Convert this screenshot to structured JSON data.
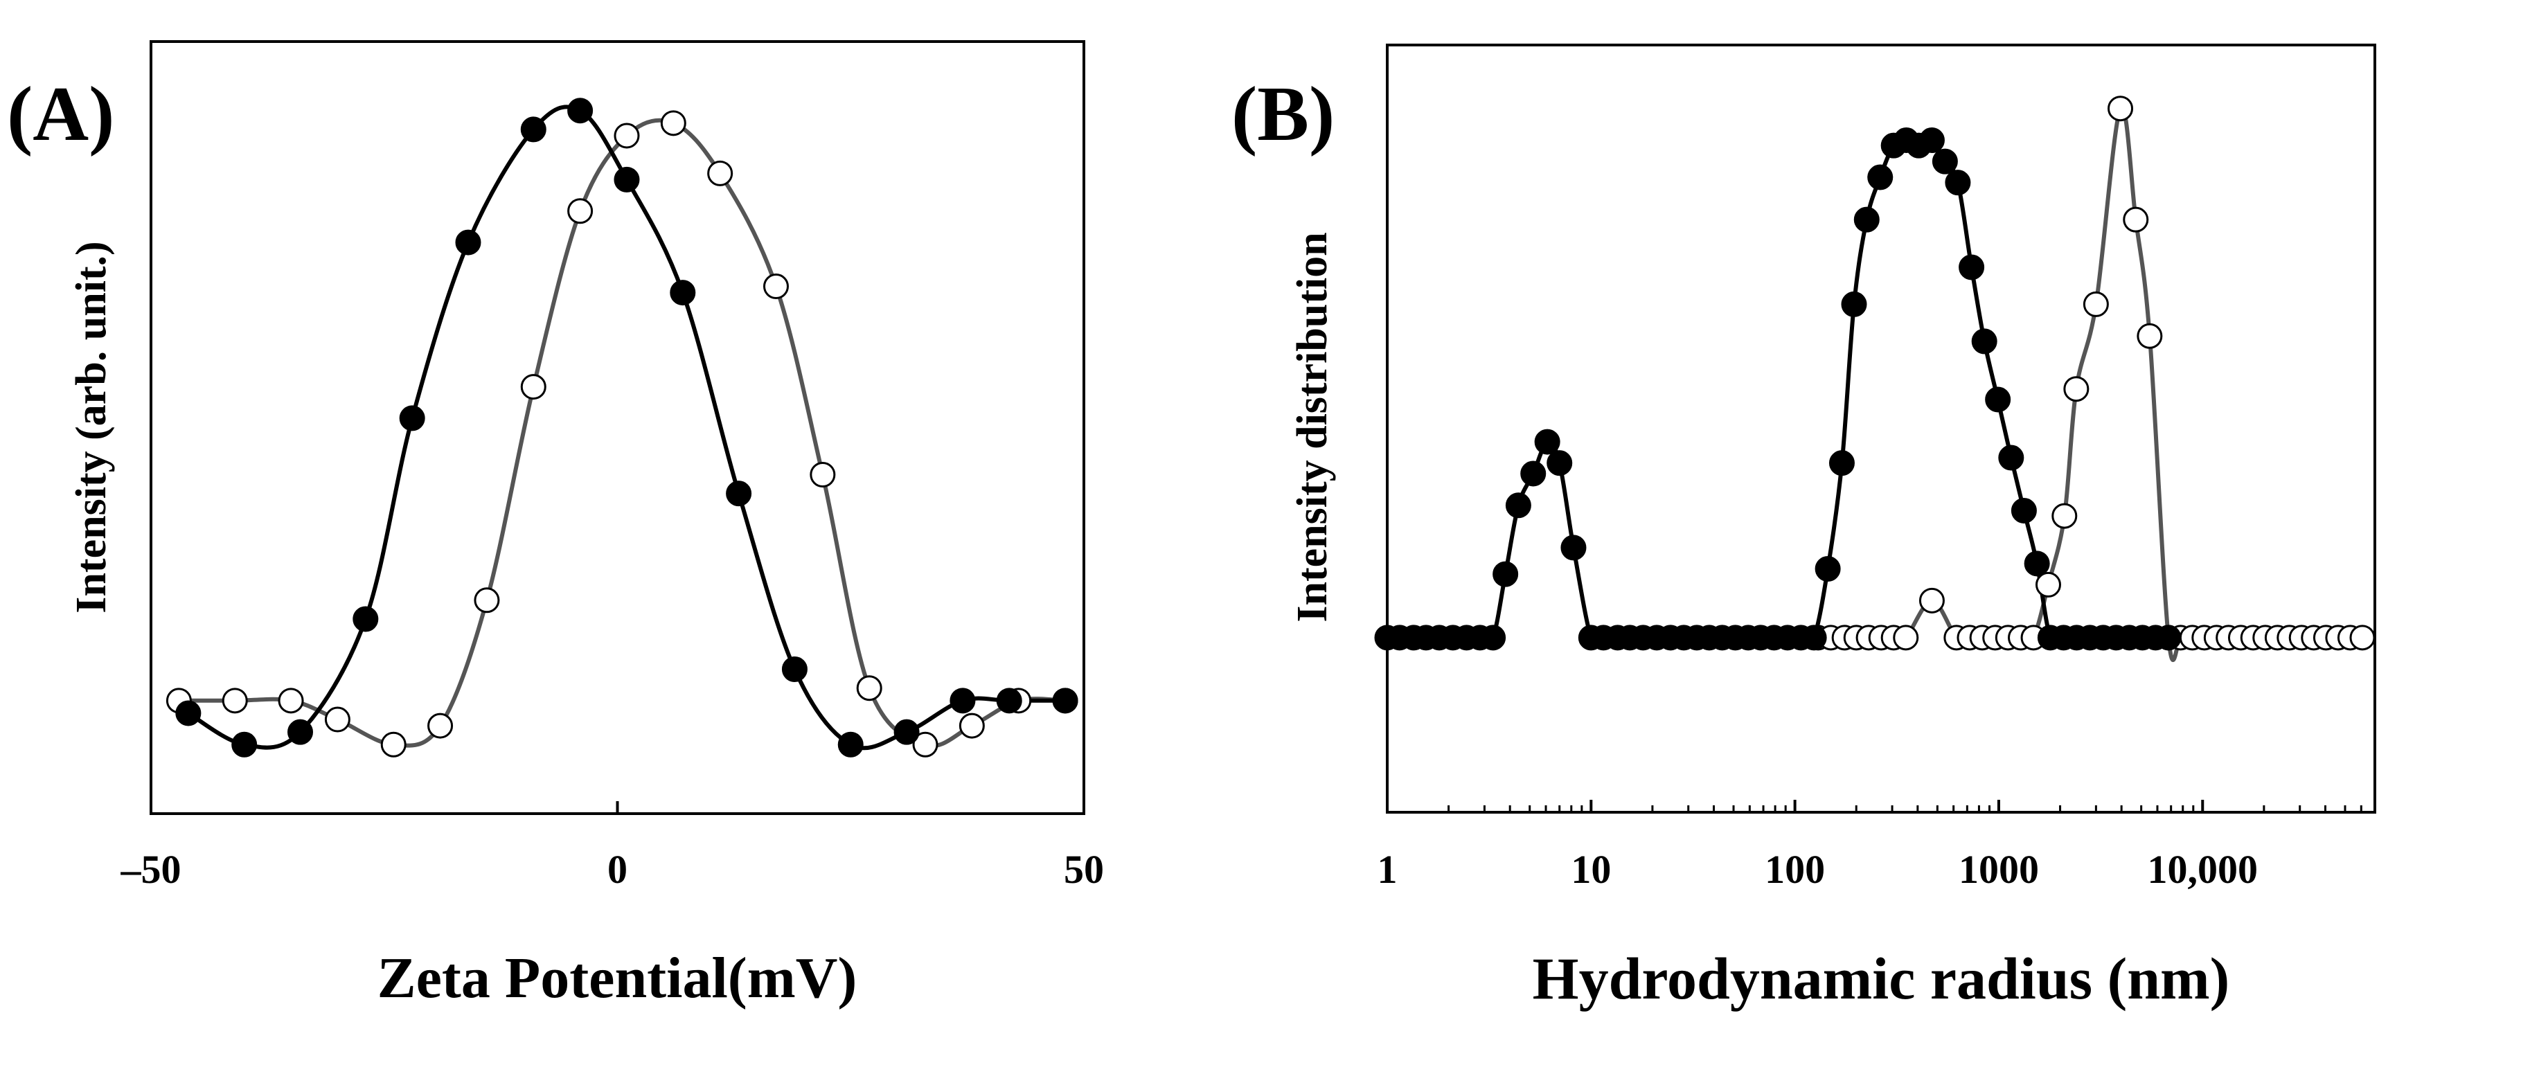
{
  "chart_data": [
    {
      "type": "scatter",
      "panel_label": "(A)",
      "title": "",
      "xlabel": "Zeta Potential(mV)",
      "ylabel": "Intensity (arb. unit.)",
      "xlim": [
        -50,
        50
      ],
      "ylim": [
        -0.18,
        1.05
      ],
      "x_ticks": [
        -50,
        0,
        50
      ],
      "x_tick_labels": [
        "–50",
        "0",
        "50"
      ],
      "grid": false,
      "series": [
        {
          "name": "filled",
          "marker": "filled",
          "line_color": "#000000",
          "points": [
            {
              "x": -46,
              "y": -0.02
            },
            {
              "x": -40,
              "y": -0.07
            },
            {
              "x": -34,
              "y": -0.05
            },
            {
              "x": -27,
              "y": 0.13
            },
            {
              "x": -22,
              "y": 0.45
            },
            {
              "x": -16,
              "y": 0.73
            },
            {
              "x": -9,
              "y": 0.91
            },
            {
              "x": -4,
              "y": 0.94
            },
            {
              "x": 1,
              "y": 0.83
            },
            {
              "x": 7,
              "y": 0.65
            },
            {
              "x": 13,
              "y": 0.33
            },
            {
              "x": 19,
              "y": 0.05
            },
            {
              "x": 25,
              "y": -0.07
            },
            {
              "x": 31,
              "y": -0.05
            },
            {
              "x": 37,
              "y": 0.0
            },
            {
              "x": 42,
              "y": 0.0
            },
            {
              "x": 48,
              "y": 0.0
            }
          ]
        },
        {
          "name": "open",
          "marker": "open",
          "line_color": "#555555",
          "points": [
            {
              "x": -47,
              "y": 0.0
            },
            {
              "x": -41,
              "y": 0.0
            },
            {
              "x": -35,
              "y": 0.0
            },
            {
              "x": -30,
              "y": -0.03
            },
            {
              "x": -24,
              "y": -0.07
            },
            {
              "x": -19,
              "y": -0.04
            },
            {
              "x": -14,
              "y": 0.16
            },
            {
              "x": -9,
              "y": 0.5
            },
            {
              "x": -4,
              "y": 0.78
            },
            {
              "x": 1,
              "y": 0.9
            },
            {
              "x": 6,
              "y": 0.92
            },
            {
              "x": 11,
              "y": 0.84
            },
            {
              "x": 17,
              "y": 0.66
            },
            {
              "x": 22,
              "y": 0.36
            },
            {
              "x": 27,
              "y": 0.02
            },
            {
              "x": 33,
              "y": -0.07
            },
            {
              "x": 38,
              "y": -0.04
            },
            {
              "x": 43,
              "y": 0.0
            },
            {
              "x": 48,
              "y": 0.0
            }
          ]
        }
      ]
    },
    {
      "type": "scatter",
      "panel_label": "(B)",
      "title": "",
      "xlabel": "Hydrodynamic radius (nm)",
      "ylabel": "Intensity distribution",
      "xscale": "log",
      "xlim": [
        1,
        70000
      ],
      "ylim": [
        -0.33,
        1.12
      ],
      "x_ticks": [
        1,
        10,
        100,
        1000,
        10000
      ],
      "x_tick_labels": [
        "1",
        "10",
        "100",
        "1000",
        "10,000"
      ],
      "grid": false,
      "series": [
        {
          "name": "filled",
          "marker": "filled",
          "line_color": "#000000",
          "points": [
            {
              "x": 1.0,
              "y": 0.0
            },
            {
              "x": 1.15,
              "y": 0.0
            },
            {
              "x": 1.35,
              "y": 0.0
            },
            {
              "x": 1.55,
              "y": 0.0
            },
            {
              "x": 1.8,
              "y": 0.0
            },
            {
              "x": 2.1,
              "y": 0.0
            },
            {
              "x": 2.45,
              "y": 0.0
            },
            {
              "x": 2.85,
              "y": 0.0
            },
            {
              "x": 3.3,
              "y": 0.0
            },
            {
              "x": 3.8,
              "y": 0.12
            },
            {
              "x": 4.4,
              "y": 0.25
            },
            {
              "x": 5.2,
              "y": 0.31
            },
            {
              "x": 6.1,
              "y": 0.37
            },
            {
              "x": 7.0,
              "y": 0.33
            },
            {
              "x": 8.2,
              "y": 0.17
            },
            {
              "x": 10.0,
              "y": 0.0
            },
            {
              "x": 11.5,
              "y": 0.0
            },
            {
              "x": 13.5,
              "y": 0.0
            },
            {
              "x": 15.5,
              "y": 0.0
            },
            {
              "x": 18.0,
              "y": 0.0
            },
            {
              "x": 21.0,
              "y": 0.0
            },
            {
              "x": 24.5,
              "y": 0.0
            },
            {
              "x": 28.5,
              "y": 0.0
            },
            {
              "x": 33.0,
              "y": 0.0
            },
            {
              "x": 38.0,
              "y": 0.0
            },
            {
              "x": 44.0,
              "y": 0.0
            },
            {
              "x": 51.0,
              "y": 0.0
            },
            {
              "x": 59.0,
              "y": 0.0
            },
            {
              "x": 68.0,
              "y": 0.0
            },
            {
              "x": 79.0,
              "y": 0.0
            },
            {
              "x": 92.0,
              "y": 0.0
            },
            {
              "x": 107.0,
              "y": 0.0
            },
            {
              "x": 124.0,
              "y": 0.0
            },
            {
              "x": 145.0,
              "y": 0.13
            },
            {
              "x": 170.0,
              "y": 0.33
            },
            {
              "x": 195.0,
              "y": 0.63
            },
            {
              "x": 225.0,
              "y": 0.79
            },
            {
              "x": 262.0,
              "y": 0.87
            },
            {
              "x": 305.0,
              "y": 0.93
            },
            {
              "x": 352.0,
              "y": 0.94
            },
            {
              "x": 405.0,
              "y": 0.93
            },
            {
              "x": 470.0,
              "y": 0.94
            },
            {
              "x": 545.0,
              "y": 0.9
            },
            {
              "x": 630.0,
              "y": 0.86
            },
            {
              "x": 735.0,
              "y": 0.7
            },
            {
              "x": 850.0,
              "y": 0.56
            },
            {
              "x": 990.0,
              "y": 0.45
            },
            {
              "x": 1150.0,
              "y": 0.34
            },
            {
              "x": 1330.0,
              "y": 0.24
            },
            {
              "x": 1540.0,
              "y": 0.14
            },
            {
              "x": 1790.0,
              "y": 0.0
            },
            {
              "x": 2080.0,
              "y": 0.0
            },
            {
              "x": 2410.0,
              "y": 0.0
            },
            {
              "x": 2800.0,
              "y": 0.0
            },
            {
              "x": 3250.0,
              "y": 0.0
            },
            {
              "x": 3770.0,
              "y": 0.0
            },
            {
              "x": 4370.0,
              "y": 0.0
            },
            {
              "x": 5070.0,
              "y": 0.0
            },
            {
              "x": 5880.0,
              "y": 0.0
            },
            {
              "x": 6800.0,
              "y": 0.0
            }
          ]
        },
        {
          "name": "open",
          "marker": "open",
          "line_color": "#555555",
          "points": [
            {
              "x": 130.0,
              "y": 0.0
            },
            {
              "x": 150.0,
              "y": 0.0
            },
            {
              "x": 175.0,
              "y": 0.0
            },
            {
              "x": 200.0,
              "y": 0.0
            },
            {
              "x": 230.0,
              "y": 0.0
            },
            {
              "x": 265.0,
              "y": 0.0
            },
            {
              "x": 305.0,
              "y": 0.0
            },
            {
              "x": 350.0,
              "y": 0.0
            },
            {
              "x": 470.0,
              "y": 0.07
            },
            {
              "x": 620.0,
              "y": 0.0
            },
            {
              "x": 720.0,
              "y": 0.0
            },
            {
              "x": 830.0,
              "y": 0.0
            },
            {
              "x": 960.0,
              "y": 0.0
            },
            {
              "x": 1110.0,
              "y": 0.0
            },
            {
              "x": 1280.0,
              "y": 0.0
            },
            {
              "x": 1480.0,
              "y": 0.0
            },
            {
              "x": 1750.0,
              "y": 0.1
            },
            {
              "x": 2100.0,
              "y": 0.23
            },
            {
              "x": 2400.0,
              "y": 0.47
            },
            {
              "x": 3000.0,
              "y": 0.63
            },
            {
              "x": 3950.0,
              "y": 1.0
            },
            {
              "x": 4700.0,
              "y": 0.79
            },
            {
              "x": 5500.0,
              "y": 0.57
            },
            {
              "x": 6800.0,
              "y": 0.0
            },
            {
              "x": 7800.0,
              "y": 0.0
            },
            {
              "x": 8900.0,
              "y": 0.0
            },
            {
              "x": 10200.0,
              "y": 0.0
            },
            {
              "x": 11700.0,
              "y": 0.0
            },
            {
              "x": 13400.0,
              "y": 0.0
            },
            {
              "x": 15400.0,
              "y": 0.0
            },
            {
              "x": 17700.0,
              "y": 0.0
            },
            {
              "x": 20300.0,
              "y": 0.0
            },
            {
              "x": 23300.0,
              "y": 0.0
            },
            {
              "x": 26700.0,
              "y": 0.0
            },
            {
              "x": 30600.0,
              "y": 0.0
            },
            {
              "x": 35100.0,
              "y": 0.0
            },
            {
              "x": 40300.0,
              "y": 0.0
            },
            {
              "x": 46200.0,
              "y": 0.0
            },
            {
              "x": 53000.0,
              "y": 0.0
            },
            {
              "x": 60800.0,
              "y": 0.0
            }
          ]
        }
      ]
    }
  ]
}
